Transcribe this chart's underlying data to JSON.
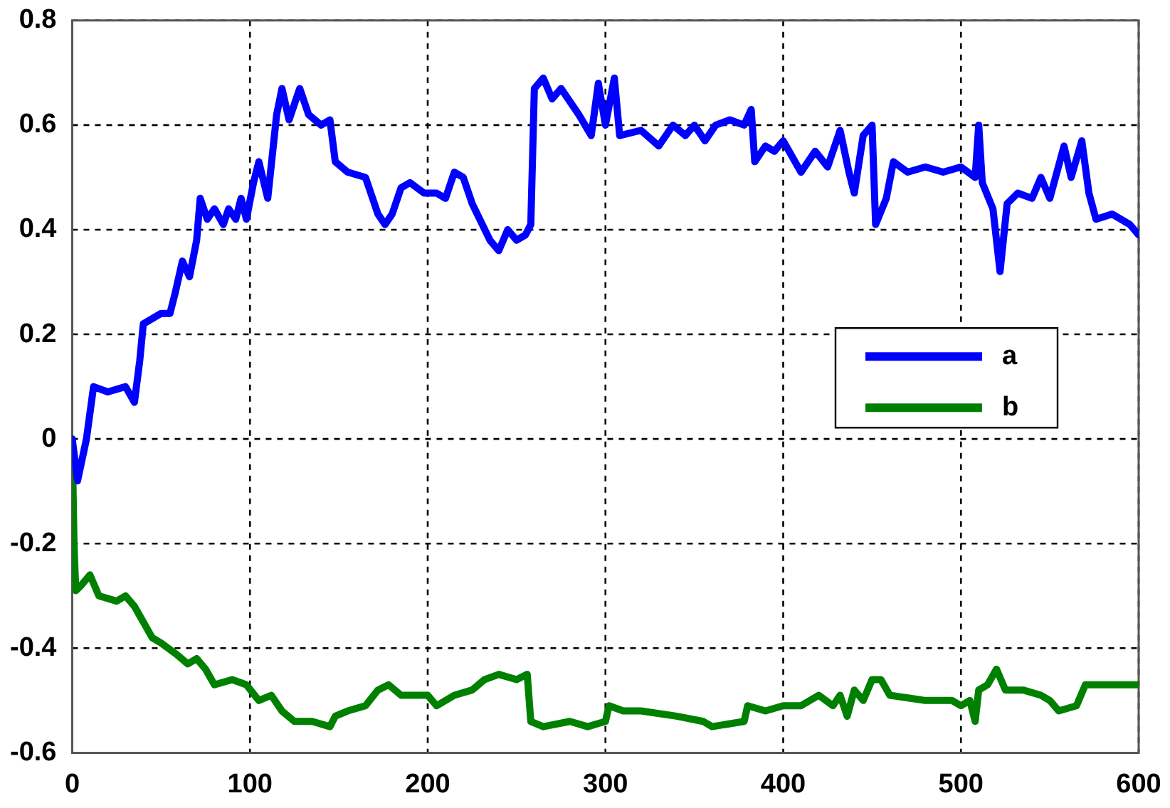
{
  "chart_data": {
    "type": "line",
    "xlim": [
      0,
      600
    ],
    "xticks": [
      0,
      100,
      200,
      300,
      400,
      500,
      600
    ],
    "ylim": [
      -0.6,
      0.8
    ],
    "yticks": [
      -0.6,
      -0.4,
      -0.2,
      0,
      0.2,
      0.4,
      0.6,
      0.8
    ],
    "grid": true,
    "legend": "right",
    "marker": "none",
    "line_style": "solid",
    "series": [
      {
        "name": "a",
        "color": "#0000ff",
        "x": [
          0,
          3,
          8,
          12,
          20,
          30,
          35,
          38,
          40,
          50,
          55,
          58,
          62,
          66,
          70,
          72,
          76,
          80,
          85,
          88,
          92,
          95,
          98,
          102,
          105,
          110,
          115,
          118,
          122,
          128,
          133,
          140,
          145,
          148,
          155,
          165,
          172,
          176,
          180,
          185,
          190,
          198,
          205,
          210,
          215,
          220,
          225,
          235,
          240,
          245,
          250,
          255,
          258,
          260,
          265,
          270,
          275,
          285,
          292,
          296,
          300,
          305,
          308,
          320,
          330,
          338,
          345,
          350,
          356,
          362,
          370,
          378,
          382,
          384,
          390,
          395,
          400,
          410,
          418,
          425,
          432,
          437,
          440,
          445,
          450,
          452,
          458,
          462,
          470,
          480,
          490,
          500,
          508,
          510,
          512,
          518,
          522,
          526,
          532,
          540,
          545,
          550,
          558,
          562,
          568,
          572,
          576,
          585,
          595,
          600
        ],
        "values": [
          0,
          -0.08,
          0,
          0.1,
          0.09,
          0.1,
          0.07,
          0.15,
          0.22,
          0.24,
          0.24,
          0.28,
          0.34,
          0.31,
          0.38,
          0.46,
          0.42,
          0.44,
          0.41,
          0.44,
          0.42,
          0.46,
          0.42,
          0.49,
          0.53,
          0.46,
          0.62,
          0.67,
          0.61,
          0.67,
          0.62,
          0.6,
          0.61,
          0.53,
          0.51,
          0.5,
          0.43,
          0.41,
          0.43,
          0.48,
          0.49,
          0.47,
          0.47,
          0.46,
          0.51,
          0.5,
          0.45,
          0.38,
          0.36,
          0.4,
          0.38,
          0.39,
          0.41,
          0.67,
          0.69,
          0.65,
          0.67,
          0.62,
          0.58,
          0.68,
          0.6,
          0.69,
          0.58,
          0.59,
          0.56,
          0.6,
          0.58,
          0.6,
          0.57,
          0.6,
          0.61,
          0.6,
          0.63,
          0.53,
          0.56,
          0.55,
          0.57,
          0.51,
          0.55,
          0.52,
          0.59,
          0.51,
          0.47,
          0.58,
          0.6,
          0.41,
          0.46,
          0.53,
          0.51,
          0.52,
          0.51,
          0.52,
          0.5,
          0.6,
          0.49,
          0.44,
          0.32,
          0.45,
          0.47,
          0.46,
          0.5,
          0.46,
          0.56,
          0.5,
          0.57,
          0.47,
          0.42,
          0.43,
          0.41,
          0.39
        ]
      },
      {
        "name": "b",
        "color": "#008000",
        "x": [
          0,
          1,
          2,
          5,
          10,
          15,
          25,
          30,
          35,
          40,
          45,
          50,
          58,
          65,
          70,
          75,
          80,
          90,
          98,
          105,
          112,
          118,
          125,
          135,
          145,
          148,
          155,
          165,
          172,
          178,
          185,
          200,
          205,
          215,
          225,
          232,
          240,
          250,
          256,
          258,
          265,
          280,
          290,
          300,
          302,
          310,
          320,
          340,
          355,
          360,
          378,
          380,
          390,
          400,
          410,
          420,
          428,
          432,
          436,
          440,
          445,
          450,
          455,
          460,
          480,
          495,
          500,
          505,
          508,
          510,
          515,
          520,
          525,
          535,
          545,
          550,
          555,
          565,
          570,
          580,
          600
        ],
        "values": [
          0,
          -0.2,
          -0.29,
          -0.28,
          -0.26,
          -0.3,
          -0.31,
          -0.3,
          -0.32,
          -0.35,
          -0.38,
          -0.39,
          -0.41,
          -0.43,
          -0.42,
          -0.44,
          -0.47,
          -0.46,
          -0.47,
          -0.5,
          -0.49,
          -0.52,
          -0.54,
          -0.54,
          -0.55,
          -0.53,
          -0.52,
          -0.51,
          -0.48,
          -0.47,
          -0.49,
          -0.49,
          -0.51,
          -0.49,
          -0.48,
          -0.46,
          -0.45,
          -0.46,
          -0.45,
          -0.54,
          -0.55,
          -0.54,
          -0.55,
          -0.54,
          -0.51,
          -0.52,
          -0.52,
          -0.53,
          -0.54,
          -0.55,
          -0.54,
          -0.51,
          -0.52,
          -0.51,
          -0.51,
          -0.49,
          -0.51,
          -0.49,
          -0.53,
          -0.48,
          -0.5,
          -0.46,
          -0.46,
          -0.49,
          -0.5,
          -0.5,
          -0.51,
          -0.5,
          -0.54,
          -0.48,
          -0.47,
          -0.44,
          -0.48,
          -0.48,
          -0.49,
          -0.5,
          -0.52,
          -0.51,
          -0.47,
          -0.47,
          -0.47
        ]
      }
    ]
  }
}
